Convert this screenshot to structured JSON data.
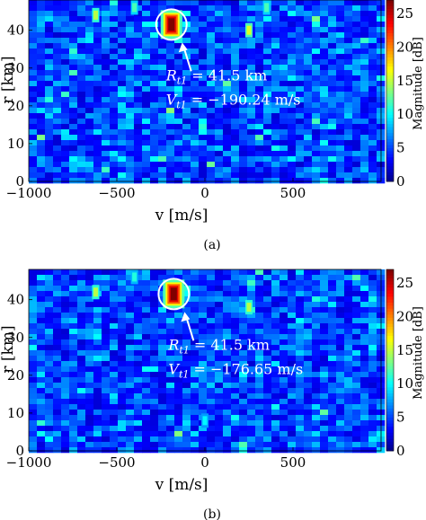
{
  "chart_data": [
    {
      "type": "heatmap",
      "caption": "(a)",
      "xlabel": "v [m/s]",
      "ylabel": "r [km]",
      "xlim": [
        -1000,
        1000
      ],
      "ylim": [
        0,
        48
      ],
      "xticks": [
        "-1000",
        "-500",
        "0",
        "500"
      ],
      "yticks": [
        "0",
        "10",
        "20",
        "30",
        "40"
      ],
      "colorbar": {
        "label": "Magnitude [dB]",
        "min": 0,
        "max": 27,
        "ticks": [
          "0",
          "5",
          "10",
          "15",
          "20",
          "25"
        ],
        "colormap": "jet"
      },
      "target": {
        "v": -190.24,
        "r": 41.5,
        "peak_db": 27
      },
      "annotation": {
        "range": "R_t1 = 41.5 km",
        "velocity": "V_t1 = −190.24 m/s"
      },
      "strong_cells": [
        {
          "v": -190,
          "r": 41.5,
          "db": 27
        },
        {
          "v": 250,
          "r": 40,
          "db": 16
        },
        {
          "v": -620,
          "r": 44,
          "db": 15
        },
        {
          "v": 350,
          "r": 46,
          "db": 12
        },
        {
          "v": -400,
          "r": 46,
          "db": 12
        }
      ]
    },
    {
      "type": "heatmap",
      "caption": "(b)",
      "xlabel": "v [m/s]",
      "ylabel": "r [km]",
      "xlim": [
        -1000,
        1000
      ],
      "ylim": [
        0,
        48
      ],
      "xticks": [
        "-1000",
        "-500",
        "0",
        "500"
      ],
      "yticks": [
        "0",
        "10",
        "20",
        "30",
        "40"
      ],
      "colorbar": {
        "label": "Magnitude [dB]",
        "min": 0,
        "max": 27,
        "ticks": [
          "0",
          "5",
          "10",
          "15",
          "20",
          "25"
        ],
        "colormap": "jet"
      },
      "target": {
        "v": -176.65,
        "r": 41.5,
        "peak_db": 27
      },
      "annotation": {
        "range": "R_t1 = 41.5 km",
        "velocity": "V_t1 = −176.65 m/s"
      },
      "strong_cells": [
        {
          "v": -177,
          "r": 41.5,
          "db": 27
        },
        {
          "v": 250,
          "r": 38,
          "db": 15
        },
        {
          "v": -620,
          "r": 42,
          "db": 15
        },
        {
          "v": 0,
          "r": 8,
          "db": 10
        },
        {
          "v": -400,
          "r": 46,
          "db": 11
        }
      ]
    }
  ]
}
